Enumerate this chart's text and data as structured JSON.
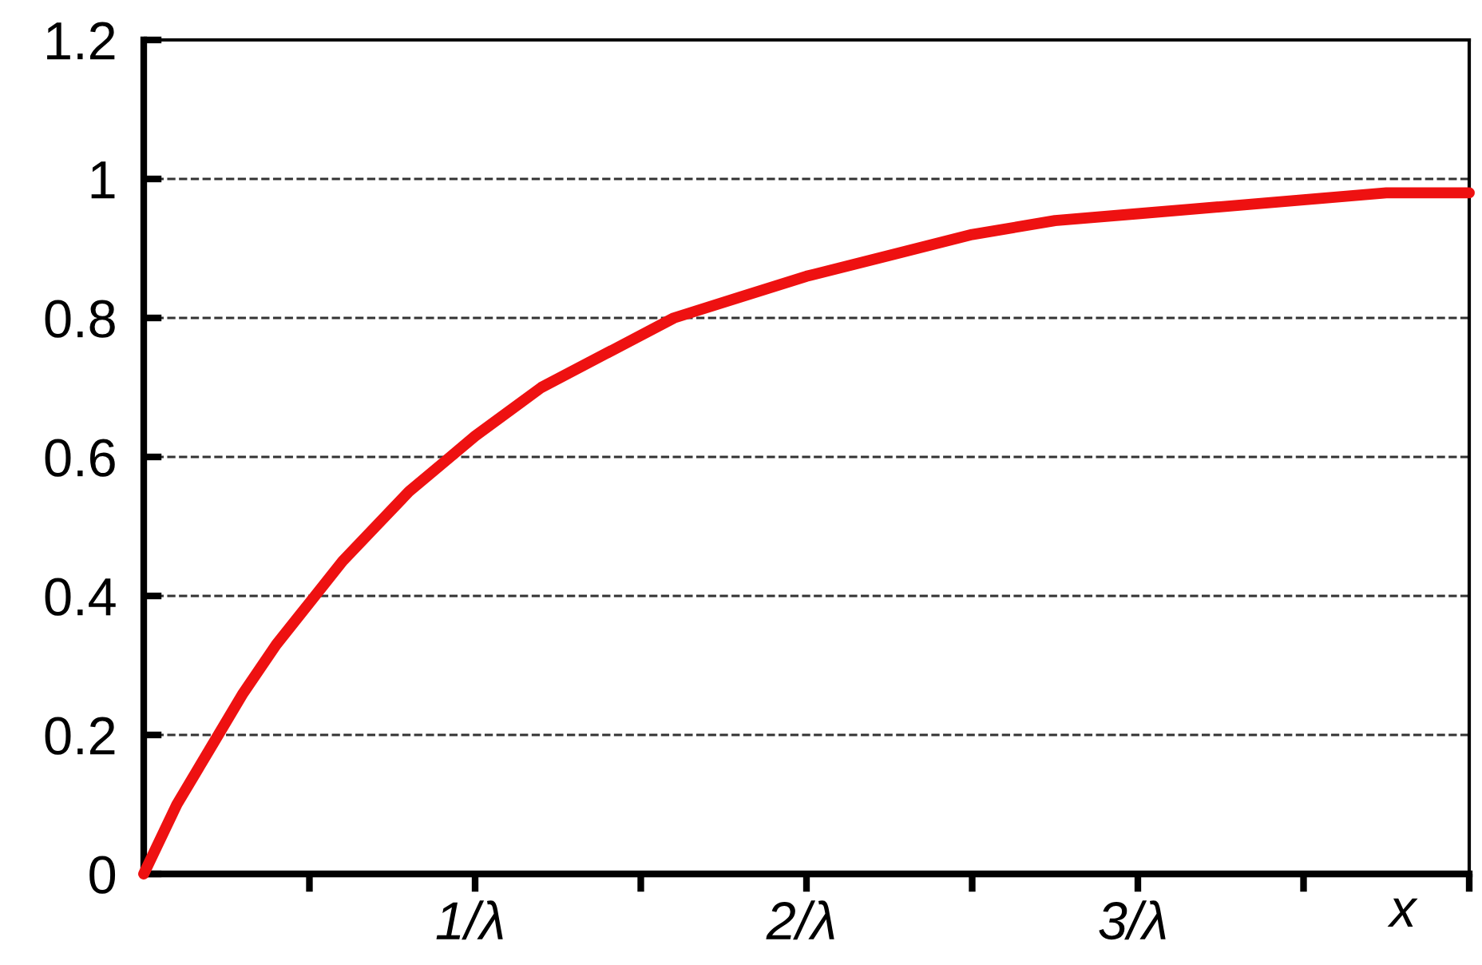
{
  "chart_data": {
    "type": "line",
    "xlabel": "x",
    "x": [
      0,
      0.1,
      0.2,
      0.3,
      0.4,
      0.5,
      0.6,
      0.7,
      0.8,
      0.9,
      1,
      1.2,
      1.4,
      1.6,
      1.8,
      2,
      2.25,
      2.5,
      2.75,
      3,
      3.25,
      3.5,
      3.75,
      4
    ],
    "values": [
      0,
      0.1,
      0.18,
      0.26,
      0.33,
      0.39,
      0.45,
      0.5,
      0.55,
      0.59,
      0.63,
      0.7,
      0.75,
      0.8,
      0.83,
      0.86,
      0.89,
      0.92,
      0.94,
      0.95,
      0.96,
      0.97,
      0.98,
      0.98
    ],
    "color": "#ee1111",
    "xlim": [
      0,
      4
    ],
    "xticks": [
      {
        "value": 0.5,
        "label": null
      },
      {
        "value": 1,
        "label": "1/λ"
      },
      {
        "value": 1.5,
        "label": null
      },
      {
        "value": 2,
        "label": "2/λ"
      },
      {
        "value": 2.5,
        "label": null
      },
      {
        "value": 3,
        "label": "3/λ"
      },
      {
        "value": 3.5,
        "label": null
      },
      {
        "value": 4,
        "label": null
      }
    ],
    "ylim": [
      0,
      1.2
    ],
    "yticks": [
      0,
      0.2,
      0.4,
      0.6,
      0.8,
      1,
      1.2
    ],
    "grid": "y",
    "legend": false,
    "marker": "none",
    "line_style": "solid"
  }
}
